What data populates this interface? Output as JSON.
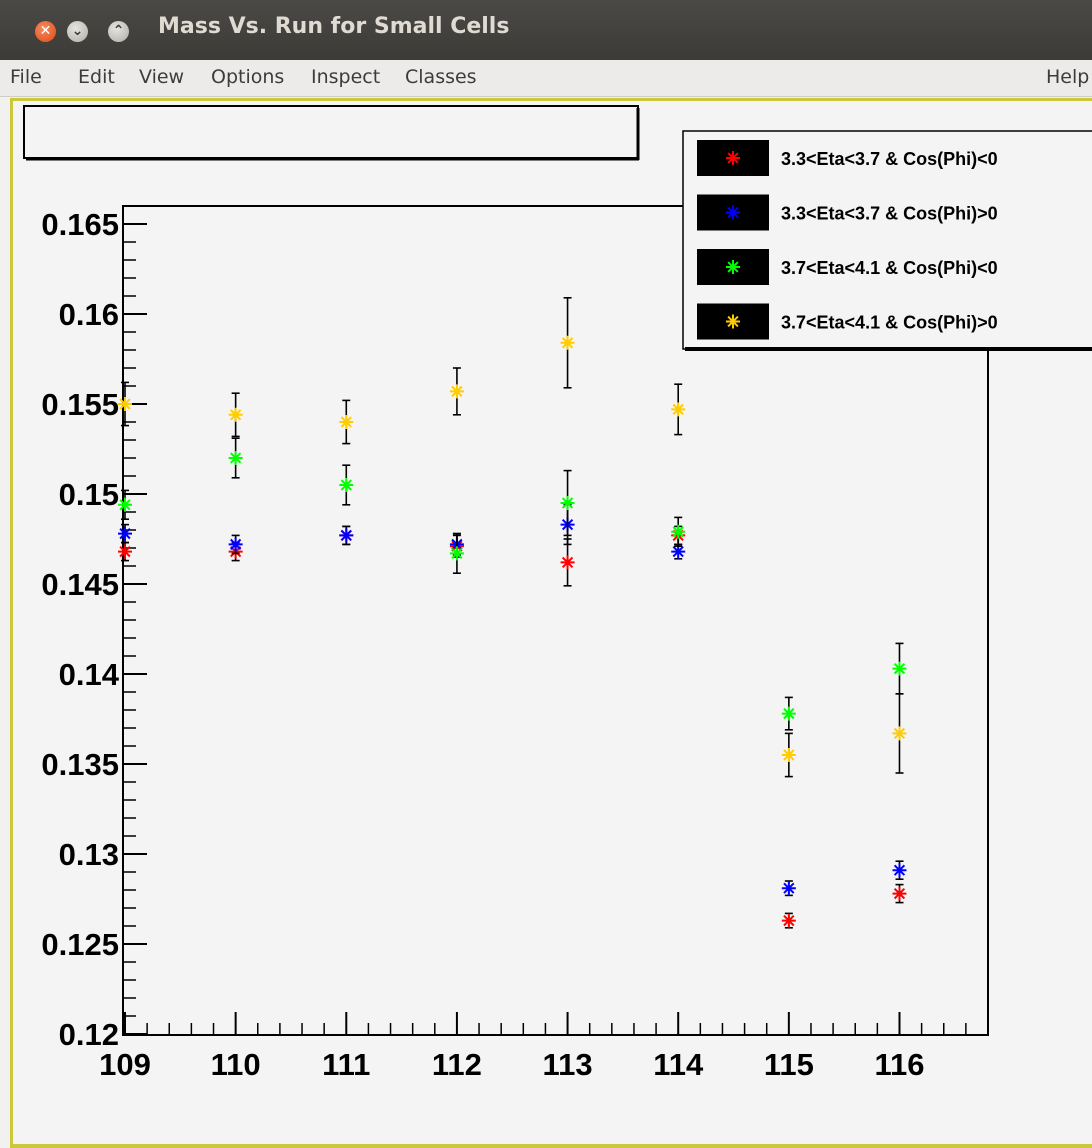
{
  "window": {
    "title": "Mass Vs. Run for Small Cells",
    "close_glyph": "✕",
    "minimize_glyph": "⌄",
    "maximize_glyph": "⌃"
  },
  "menu": {
    "file": "File",
    "edit": "Edit",
    "view": "View",
    "options": "Options",
    "inspect": "Inspect",
    "classes": "Classes",
    "help": "Help"
  },
  "colors": {
    "frame_border": "#c9c93a",
    "series_red": "#ff0000",
    "series_blue": "#0000ff",
    "series_green": "#00ff00",
    "series_yellow": "#ffcc00"
  },
  "chart_data": {
    "type": "scatter",
    "title": "",
    "xlabel": "",
    "ylabel": "",
    "xlim": [
      109,
      116.8
    ],
    "ylim": [
      0.12,
      0.166
    ],
    "x_ticks": [
      "109",
      "110",
      "111",
      "112",
      "113",
      "114",
      "115",
      "116"
    ],
    "y_ticks": [
      "0.12",
      "0.125",
      "0.13",
      "0.135",
      "0.14",
      "0.145",
      "0.15",
      "0.155",
      "0.16",
      "0.165"
    ],
    "grid": false,
    "legend_position": "top-right",
    "x": [
      109,
      110,
      111,
      112,
      113,
      114,
      115,
      116
    ],
    "series": [
      {
        "name": "3.3<Eta<3.7 & Cos(Phi)<0",
        "color": "#ff0000",
        "values": [
          0.1468,
          0.1468,
          0.1477,
          0.1471,
          0.1462,
          0.1477,
          0.1263,
          0.1278
        ],
        "errors": [
          0.0005,
          0.0005,
          0.0005,
          0.0006,
          0.0013,
          0.0005,
          0.0004,
          0.0005
        ]
      },
      {
        "name": "3.3<Eta<3.7 & Cos(Phi)>0",
        "color": "#0000ff",
        "values": [
          0.1478,
          0.1472,
          0.1477,
          0.1472,
          0.1483,
          0.1468,
          0.1281,
          0.1291
        ],
        "errors": [
          0.0005,
          0.0005,
          0.0005,
          0.0006,
          0.0011,
          0.0004,
          0.0004,
          0.0005
        ]
      },
      {
        "name": "3.7<Eta<4.1 & Cos(Phi)<0",
        "color": "#00ff00",
        "values": [
          0.1494,
          0.152,
          0.1505,
          0.1467,
          0.1495,
          0.1479,
          0.1378,
          0.1403
        ],
        "errors": [
          0.0008,
          0.0011,
          0.0011,
          0.0011,
          0.0018,
          0.0008,
          0.0009,
          0.0014
        ]
      },
      {
        "name": "3.7<Eta<4.1 & Cos(Phi)>0",
        "color": "#ffcc00",
        "values": [
          0.155,
          0.1544,
          0.154,
          0.1557,
          0.1584,
          0.1547,
          0.1355,
          0.1367
        ],
        "errors": [
          0.0012,
          0.0012,
          0.0012,
          0.0013,
          0.0025,
          0.0014,
          0.0012,
          0.0022
        ]
      }
    ]
  }
}
